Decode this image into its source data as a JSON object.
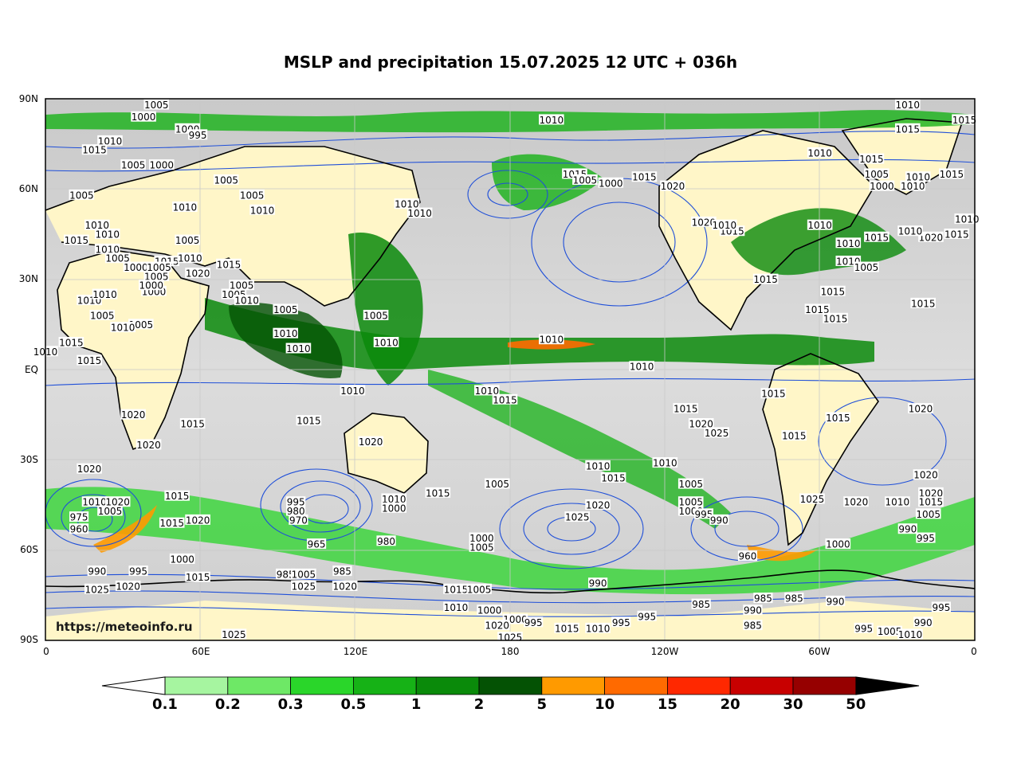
{
  "title": "MSLP and precipitation 15.07.2025 12 UTC + 036h",
  "source": "https://meteoinfo.ru",
  "lat_labels": [
    "90N",
    "60N",
    "30N",
    "EQ",
    "30S",
    "60S",
    "90S"
  ],
  "lon_labels": [
    "0",
    "60E",
    "120E",
    "180",
    "120W",
    "60W",
    "0"
  ],
  "colorbar": {
    "labels": [
      "0.1",
      "0.2",
      "0.3",
      "0.5",
      "1",
      "2",
      "5",
      "10",
      "15",
      "20",
      "30",
      "50"
    ],
    "colors": [
      "#a6f5a0",
      "#6ee866",
      "#2ad62a",
      "#16b216",
      "#0a8a0a",
      "#045204",
      "#ff9a00",
      "#ff6a00",
      "#ff2800",
      "#c80000",
      "#960000"
    ]
  },
  "colors": {
    "isobar": "#1f4fd8",
    "coast": "#000000",
    "land": "#fff6c8",
    "grid": "#c8c8c8"
  },
  "isobar_labels": [
    {
      "t": "1005",
      "lon": 43,
      "lat": 88
    },
    {
      "t": "1000",
      "lon": 38,
      "lat": 84
    },
    {
      "t": "1000",
      "lon": 55,
      "lat": 80
    },
    {
      "t": "995",
      "lon": 59,
      "lat": 78
    },
    {
      "t": "1010",
      "lon": 25,
      "lat": 76
    },
    {
      "t": "1015",
      "lon": 19,
      "lat": 73
    },
    {
      "t": "1005",
      "lon": 34,
      "lat": 68
    },
    {
      "t": "1000",
      "lon": 45,
      "lat": 68
    },
    {
      "t": "1005",
      "lon": 70,
      "lat": 63
    },
    {
      "t": "1005",
      "lon": 14,
      "lat": 58
    },
    {
      "t": "1010",
      "lon": 54,
      "lat": 54
    },
    {
      "t": "1005",
      "lon": 80,
      "lat": 58
    },
    {
      "t": "1010",
      "lon": 84,
      "lat": 53
    },
    {
      "t": "1010",
      "lon": 145,
      "lat": 52
    },
    {
      "t": "1010",
      "lon": 140,
      "lat": 55
    },
    {
      "t": "1015",
      "lon": 12,
      "lat": 43
    },
    {
      "t": "1010",
      "lon": 24,
      "lat": 45
    },
    {
      "t": "1015",
      "lon": 205,
      "lat": 65
    },
    {
      "t": "1005",
      "lon": 209,
      "lat": 63
    },
    {
      "t": "1000",
      "lon": 219,
      "lat": 62
    },
    {
      "t": "1010",
      "lon": 196,
      "lat": 83
    },
    {
      "t": "1015",
      "lon": 232,
      "lat": 64
    },
    {
      "t": "1020",
      "lon": 243,
      "lat": 61
    },
    {
      "t": "1020",
      "lon": 255,
      "lat": 49
    },
    {
      "t": "1015",
      "lon": 266,
      "lat": 46
    },
    {
      "t": "1015",
      "lon": 279,
      "lat": 30
    },
    {
      "t": "1015",
      "lon": 299,
      "lat": 20
    },
    {
      "t": "1015",
      "lon": 322,
      "lat": 44
    },
    {
      "t": "1010",
      "lon": 311,
      "lat": 42
    },
    {
      "t": "1010",
      "lon": 311,
      "lat": 36
    },
    {
      "t": "1005",
      "lon": 318,
      "lat": 34
    },
    {
      "t": "1015",
      "lon": 305,
      "lat": 26
    },
    {
      "t": "1015",
      "lon": 306,
      "lat": 17
    },
    {
      "t": "1010",
      "lon": 300,
      "lat": 48
    },
    {
      "t": "1010",
      "lon": 0,
      "lat": 6
    },
    {
      "t": "1010",
      "lon": 263,
      "lat": 48
    },
    {
      "t": "1010",
      "lon": 300,
      "lat": 72
    },
    {
      "t": "1015",
      "lon": 320,
      "lat": 70
    },
    {
      "t": "1005",
      "lon": 322,
      "lat": 65
    },
    {
      "t": "1000",
      "lon": 324,
      "lat": 61
    },
    {
      "t": "1010",
      "lon": 336,
      "lat": 61
    },
    {
      "t": "1010",
      "lon": 338,
      "lat": 64
    },
    {
      "t": "1015",
      "lon": 351,
      "lat": 65
    },
    {
      "t": "1010",
      "lon": 357,
      "lat": 50
    },
    {
      "t": "1015",
      "lon": 353,
      "lat": 45
    },
    {
      "t": "1020",
      "lon": 343,
      "lat": 44
    },
    {
      "t": "1010",
      "lon": 335,
      "lat": 46
    },
    {
      "t": "1015",
      "lon": 340,
      "lat": 22
    },
    {
      "t": "1015",
      "lon": 334,
      "lat": 80
    },
    {
      "t": "1010",
      "lon": 334,
      "lat": 88
    },
    {
      "t": "1015",
      "lon": 356,
      "lat": 83
    },
    {
      "t": "1010",
      "lon": 20,
      "lat": 48
    },
    {
      "t": "1010",
      "lon": 24,
      "lat": 40
    },
    {
      "t": "1005",
      "lon": 28,
      "lat": 37
    },
    {
      "t": "1000",
      "lon": 35,
      "lat": 34
    },
    {
      "t": "1005",
      "lon": 43,
      "lat": 31
    },
    {
      "t": "1015",
      "lon": 47,
      "lat": 36
    },
    {
      "t": "1000",
      "lon": 42,
      "lat": 26
    },
    {
      "t": "1000",
      "lon": 41,
      "lat": 28
    },
    {
      "t": "1010",
      "lon": 17,
      "lat": 23
    },
    {
      "t": "1010",
      "lon": 23,
      "lat": 25
    },
    {
      "t": "1005",
      "lon": 44,
      "lat": 34
    },
    {
      "t": "1020",
      "lon": 59,
      "lat": 32
    },
    {
      "t": "1015",
      "lon": 71,
      "lat": 35
    },
    {
      "t": "1005",
      "lon": 55,
      "lat": 43
    },
    {
      "t": "1010",
      "lon": 56,
      "lat": 37
    },
    {
      "t": "1005",
      "lon": 76,
      "lat": 28
    },
    {
      "t": "1005",
      "lon": 73,
      "lat": 25
    },
    {
      "t": "1005",
      "lon": 93,
      "lat": 20
    },
    {
      "t": "1010",
      "lon": 93,
      "lat": 12
    },
    {
      "t": "1010",
      "lon": 78,
      "lat": 23
    },
    {
      "t": "1005",
      "lon": 22,
      "lat": 18
    },
    {
      "t": "1005",
      "lon": 37,
      "lat": 15
    },
    {
      "t": "1010",
      "lon": 30,
      "lat": 14
    },
    {
      "t": "1015",
      "lon": 10,
      "lat": 9
    },
    {
      "t": "1015",
      "lon": 17,
      "lat": 3
    },
    {
      "t": "1010",
      "lon": 98,
      "lat": 7
    },
    {
      "t": "1010",
      "lon": 132,
      "lat": 9
    },
    {
      "t": "1005",
      "lon": 128,
      "lat": 18
    },
    {
      "t": "1010",
      "lon": 119,
      "lat": -7
    },
    {
      "t": "1020",
      "lon": 34,
      "lat": -15
    },
    {
      "t": "1020",
      "lon": 40,
      "lat": -25
    },
    {
      "t": "1015",
      "lon": 57,
      "lat": -18
    },
    {
      "t": "1020",
      "lon": 126,
      "lat": -24
    },
    {
      "t": "1015",
      "lon": 102,
      "lat": -17
    },
    {
      "t": "1010",
      "lon": 171,
      "lat": -7
    },
    {
      "t": "1015",
      "lon": 178,
      "lat": -10
    },
    {
      "t": "1010",
      "lon": 196,
      "lat": 10
    },
    {
      "t": "1010",
      "lon": 231,
      "lat": 1
    },
    {
      "t": "1015",
      "lon": 248,
      "lat": -13
    },
    {
      "t": "1020",
      "lon": 254,
      "lat": -18
    },
    {
      "t": "1025",
      "lon": 260,
      "lat": -21
    },
    {
      "t": "1015",
      "lon": 282,
      "lat": -8
    },
    {
      "t": "1015",
      "lon": 290,
      "lat": -22
    },
    {
      "t": "1015",
      "lon": 307,
      "lat": -16
    },
    {
      "t": "1020",
      "lon": 339,
      "lat": -13
    },
    {
      "t": "1020",
      "lon": 17,
      "lat": -33
    },
    {
      "t": "1010",
      "lon": 19,
      "lat": -44
    },
    {
      "t": "1005",
      "lon": 25,
      "lat": -47
    },
    {
      "t": "1020",
      "lon": 28,
      "lat": -44
    },
    {
      "t": "975",
      "lon": 13,
      "lat": -49
    },
    {
      "t": "960",
      "lon": 13,
      "lat": -53
    },
    {
      "t": "1015",
      "lon": 51,
      "lat": -42
    },
    {
      "t": "1015",
      "lon": 49,
      "lat": -51
    },
    {
      "t": "1020",
      "lon": 59,
      "lat": -50
    },
    {
      "t": "995",
      "lon": 97,
      "lat": -44
    },
    {
      "t": "980",
      "lon": 97,
      "lat": -47
    },
    {
      "t": "970",
      "lon": 98,
      "lat": -50
    },
    {
      "t": "965",
      "lon": 105,
      "lat": -58
    },
    {
      "t": "980",
      "lon": 132,
      "lat": -57
    },
    {
      "t": "1010",
      "lon": 135,
      "lat": -43
    },
    {
      "t": "1000",
      "lon": 135,
      "lat": -46
    },
    {
      "t": "1015",
      "lon": 152,
      "lat": -41
    },
    {
      "t": "1000",
      "lon": 169,
      "lat": -56
    },
    {
      "t": "1005",
      "lon": 169,
      "lat": -59
    },
    {
      "t": "1005",
      "lon": 175,
      "lat": -38
    },
    {
      "t": "1010",
      "lon": 214,
      "lat": -32
    },
    {
      "t": "1015",
      "lon": 220,
      "lat": -36
    },
    {
      "t": "1020",
      "lon": 214,
      "lat": -45
    },
    {
      "t": "1025",
      "lon": 206,
      "lat": -49
    },
    {
      "t": "1010",
      "lon": 240,
      "lat": -31
    },
    {
      "t": "1005",
      "lon": 250,
      "lat": -38
    },
    {
      "t": "1005",
      "lon": 250,
      "lat": -44
    },
    {
      "t": "1000",
      "lon": 250,
      "lat": -47
    },
    {
      "t": "995",
      "lon": 255,
      "lat": -48
    },
    {
      "t": "990",
      "lon": 261,
      "lat": -50
    },
    {
      "t": "960",
      "lon": 272,
      "lat": -62
    },
    {
      "t": "1025",
      "lon": 297,
      "lat": -43
    },
    {
      "t": "1020",
      "lon": 314,
      "lat": -44
    },
    {
      "t": "1010",
      "lon": 330,
      "lat": -44
    },
    {
      "t": "1020",
      "lon": 341,
      "lat": -35
    },
    {
      "t": "1020",
      "lon": 343,
      "lat": -41
    },
    {
      "t": "1015",
      "lon": 343,
      "lat": -44
    },
    {
      "t": "1005",
      "lon": 342,
      "lat": -48
    },
    {
      "t": "990",
      "lon": 334,
      "lat": -53
    },
    {
      "t": "995",
      "lon": 341,
      "lat": -56
    },
    {
      "t": "1000",
      "lon": 307,
      "lat": -58
    },
    {
      "t": "1000",
      "lon": 53,
      "lat": -63
    },
    {
      "t": "995",
      "lon": 36,
      "lat": -67
    },
    {
      "t": "990",
      "lon": 20,
      "lat": -67
    },
    {
      "t": "1015",
      "lon": 59,
      "lat": -69
    },
    {
      "t": "1020",
      "lon": 32,
      "lat": -72
    },
    {
      "t": "1025",
      "lon": 20,
      "lat": -73
    },
    {
      "t": "985",
      "lon": 93,
      "lat": -68
    },
    {
      "t": "1005",
      "lon": 100,
      "lat": -68
    },
    {
      "t": "1025",
      "lon": 100,
      "lat": -72
    },
    {
      "t": "985",
      "lon": 115,
      "lat": -67
    },
    {
      "t": "1020",
      "lon": 116,
      "lat": -72
    },
    {
      "t": "1015",
      "lon": 159,
      "lat": -73
    },
    {
      "t": "1005",
      "lon": 168,
      "lat": -73
    },
    {
      "t": "1010",
      "lon": 159,
      "lat": -79
    },
    {
      "t": "1000",
      "lon": 172,
      "lat": -80
    },
    {
      "t": "1000",
      "lon": 182,
      "lat": -83
    },
    {
      "t": "1020",
      "lon": 175,
      "lat": -85
    },
    {
      "t": "995",
      "lon": 189,
      "lat": -84
    },
    {
      "t": "1015",
      "lon": 202,
      "lat": -86
    },
    {
      "t": "1010",
      "lon": 214,
      "lat": -86
    },
    {
      "t": "995",
      "lon": 233,
      "lat": -82
    },
    {
      "t": "995",
      "lon": 223,
      "lat": -84
    },
    {
      "t": "990",
      "lon": 214,
      "lat": -71
    },
    {
      "t": "985",
      "lon": 254,
      "lat": -78
    },
    {
      "t": "985",
      "lon": 278,
      "lat": -76
    },
    {
      "t": "985",
      "lon": 290,
      "lat": -76
    },
    {
      "t": "990",
      "lon": 306,
      "lat": -77
    },
    {
      "t": "995",
      "lon": 317,
      "lat": -86
    },
    {
      "t": "990",
      "lon": 340,
      "lat": -84
    },
    {
      "t": "995",
      "lon": 347,
      "lat": -79
    },
    {
      "t": "1005",
      "lon": 327,
      "lat": -87
    },
    {
      "t": "1010",
      "lon": 335,
      "lat": -88
    },
    {
      "t": "990",
      "lon": 274,
      "lat": -80
    },
    {
      "t": "985",
      "lon": 274,
      "lat": -85
    },
    {
      "t": "1025",
      "lon": 180,
      "lat": -89
    },
    {
      "t": "1025",
      "lon": 73,
      "lat": -88
    }
  ]
}
